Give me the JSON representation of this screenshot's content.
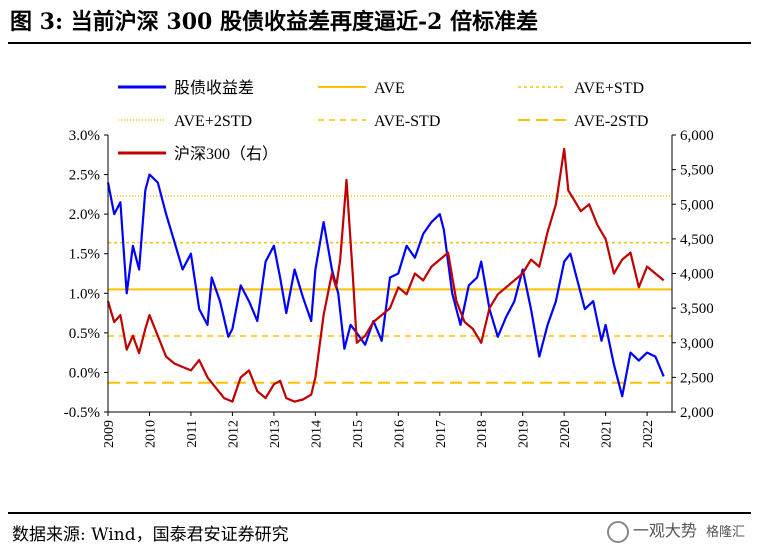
{
  "title": "图 3:  当前沪深 300 股债收益差再度逼近-2 倍标准差",
  "source": "数据来源:  Wind，国泰君安证券研究",
  "watermark": "一观大势",
  "watermark_sub": "格隆汇",
  "colors": {
    "spread": "#0000ff",
    "hs300": "#c00000",
    "ave": "#ffc000"
  },
  "chart_data": {
    "type": "line",
    "title": "",
    "legend": [
      "股债收益差",
      "AVE",
      "AVE+STD",
      "AVE+2STD",
      "AVE-STD",
      "AVE-2STD",
      "沪深300（右）"
    ],
    "x_ticks": [
      "2009",
      "2010",
      "2011",
      "2012",
      "2013",
      "2014",
      "2015",
      "2016",
      "2017",
      "2018",
      "2019",
      "2020",
      "2021",
      "2022"
    ],
    "y_left": {
      "ticks": [
        "-0.5%",
        "0.0%",
        "0.5%",
        "1.0%",
        "1.5%",
        "2.0%",
        "2.5%",
        "3.0%"
      ],
      "lim": [
        -0.5,
        3.0
      ]
    },
    "y_right": {
      "ticks": [
        "2,000",
        "2,500",
        "3,000",
        "3,500",
        "4,000",
        "4,500",
        "5,000",
        "5,500",
        "6,000"
      ],
      "lim": [
        2000,
        6000
      ]
    },
    "reference_lines": {
      "AVE": 1.05,
      "AVE+STD": 1.64,
      "AVE+2STD": 2.23,
      "AVE-STD": 0.46,
      "AVE-2STD": -0.13
    },
    "series": [
      {
        "name": "股债收益差",
        "axis": "left",
        "x": [
          2009.0,
          2009.15,
          2009.3,
          2009.45,
          2009.6,
          2009.75,
          2009.9,
          2010.0,
          2010.2,
          2010.4,
          2010.6,
          2010.8,
          2011.0,
          2011.2,
          2011.4,
          2011.5,
          2011.7,
          2011.9,
          2012.0,
          2012.2,
          2012.4,
          2012.6,
          2012.8,
          2013.0,
          2013.15,
          2013.3,
          2013.5,
          2013.7,
          2013.9,
          2014.0,
          2014.2,
          2014.4,
          2014.55,
          2014.7,
          2014.85,
          2015.0,
          2015.2,
          2015.4,
          2015.6,
          2015.8,
          2016.0,
          2016.2,
          2016.4,
          2016.6,
          2016.8,
          2017.0,
          2017.1,
          2017.3,
          2017.5,
          2017.7,
          2017.9,
          2018.0,
          2018.2,
          2018.4,
          2018.6,
          2018.8,
          2019.0,
          2019.2,
          2019.4,
          2019.6,
          2019.8,
          2020.0,
          2020.15,
          2020.3,
          2020.5,
          2020.7,
          2020.9,
          2021.0,
          2021.2,
          2021.4,
          2021.6,
          2021.8,
          2022.0,
          2022.2,
          2022.4
        ],
        "values": [
          2.4,
          2.0,
          2.15,
          1.0,
          1.6,
          1.3,
          2.3,
          2.5,
          2.4,
          2.0,
          1.65,
          1.3,
          1.5,
          0.8,
          0.6,
          1.2,
          0.9,
          0.45,
          0.55,
          1.1,
          0.9,
          0.65,
          1.4,
          1.6,
          1.2,
          0.75,
          1.3,
          0.95,
          0.65,
          1.3,
          1.9,
          1.3,
          1.0,
          0.3,
          0.6,
          0.5,
          0.35,
          0.65,
          0.4,
          1.2,
          1.25,
          1.6,
          1.45,
          1.75,
          1.9,
          2.0,
          1.8,
          1.0,
          0.6,
          1.1,
          1.2,
          1.4,
          0.8,
          0.45,
          0.7,
          0.9,
          1.3,
          0.8,
          0.2,
          0.6,
          0.9,
          1.4,
          1.5,
          1.2,
          0.8,
          0.9,
          0.4,
          0.6,
          0.1,
          -0.3,
          0.25,
          0.15,
          0.25,
          0.2,
          -0.05
        ]
      },
      {
        "name": "沪深300（右）",
        "axis": "right",
        "x": [
          2009.0,
          2009.15,
          2009.3,
          2009.45,
          2009.6,
          2009.75,
          2009.9,
          2010.0,
          2010.2,
          2010.4,
          2010.6,
          2010.8,
          2011.0,
          2011.2,
          2011.4,
          2011.6,
          2011.8,
          2012.0,
          2012.2,
          2012.4,
          2012.6,
          2012.8,
          2013.0,
          2013.15,
          2013.3,
          2013.5,
          2013.7,
          2013.9,
          2014.0,
          2014.2,
          2014.4,
          2014.5,
          2014.6,
          2014.75,
          2014.9,
          2015.0,
          2015.2,
          2015.4,
          2015.6,
          2015.8,
          2016.0,
          2016.2,
          2016.4,
          2016.6,
          2016.8,
          2017.0,
          2017.2,
          2017.4,
          2017.6,
          2017.8,
          2018.0,
          2018.2,
          2018.4,
          2018.6,
          2018.8,
          2019.0,
          2019.2,
          2019.4,
          2019.6,
          2019.8,
          2020.0,
          2020.1,
          2020.2,
          2020.4,
          2020.6,
          2020.8,
          2021.0,
          2021.2,
          2021.4,
          2021.6,
          2021.8,
          2022.0,
          2022.2,
          2022.4
        ],
        "values": [
          3600,
          3300,
          3400,
          2900,
          3100,
          2850,
          3200,
          3400,
          3100,
          2800,
          2700,
          2650,
          2600,
          2750,
          2500,
          2350,
          2200,
          2150,
          2500,
          2600,
          2300,
          2200,
          2400,
          2450,
          2200,
          2150,
          2180,
          2250,
          2500,
          3400,
          4000,
          3800,
          4200,
          5350,
          4000,
          3000,
          3100,
          3300,
          3400,
          3500,
          3800,
          3700,
          4000,
          3900,
          4100,
          4200,
          4300,
          3600,
          3300,
          3200,
          3000,
          3500,
          3700,
          3800,
          3900,
          4000,
          4200,
          4100,
          4600,
          5000,
          5800,
          5200,
          5100,
          4900,
          5000,
          4700,
          4500,
          4000,
          4200,
          4300,
          3800,
          4100,
          4000,
          3900
        ]
      }
    ]
  }
}
